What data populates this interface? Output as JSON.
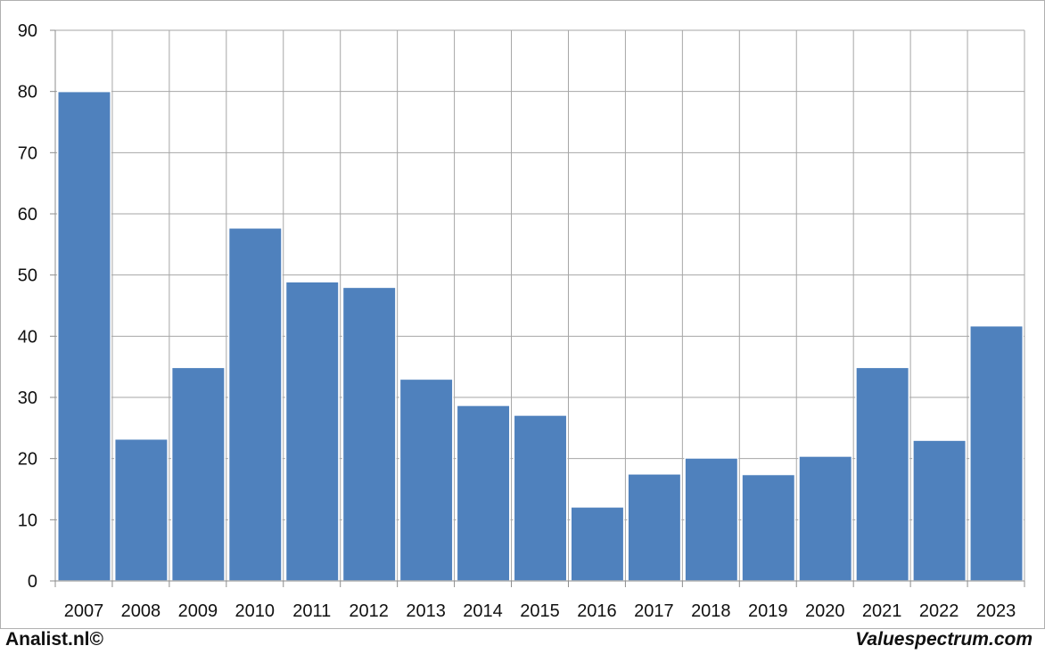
{
  "chart_data": {
    "type": "bar",
    "categories": [
      "2007",
      "2008",
      "2009",
      "2010",
      "2011",
      "2012",
      "2013",
      "2014",
      "2015",
      "2016",
      "2017",
      "2018",
      "2019",
      "2020",
      "2021",
      "2022",
      "2023"
    ],
    "values": [
      80,
      23.2,
      34.9,
      57.7,
      48.9,
      48,
      33,
      28.7,
      27.1,
      12.1,
      17.5,
      20.1,
      17.4,
      20.4,
      34.9,
      23,
      41.7
    ],
    "ylim": [
      0,
      90
    ],
    "yticks": [
      "0",
      "10",
      "20",
      "30",
      "40",
      "50",
      "60",
      "70",
      "80",
      "90"
    ],
    "grid": true,
    "bar_color": "#4f81bd"
  },
  "footer": {
    "left": "Analist.nl©",
    "right": "Valuespectrum.com"
  }
}
